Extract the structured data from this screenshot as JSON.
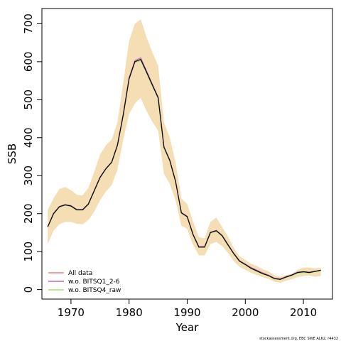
{
  "chart_data": {
    "type": "line",
    "xlabel": "Year",
    "ylabel": "SSB",
    "xlim": [
      1965,
      2015
    ],
    "ylim": [
      -25,
      740
    ],
    "xticks": [
      1970,
      1980,
      1990,
      2000,
      2010
    ],
    "yticks": [
      0,
      100,
      200,
      300,
      400,
      500,
      600,
      700
    ],
    "grid": false,
    "legend_position": "bottom-left",
    "x": [
      1966,
      1967,
      1968,
      1969,
      1970,
      1971,
      1972,
      1973,
      1974,
      1975,
      1976,
      1977,
      1978,
      1979,
      1980,
      1981,
      1982,
      1983,
      1984,
      1985,
      1986,
      1987,
      1988,
      1989,
      1990,
      1991,
      1992,
      1993,
      1994,
      1995,
      1996,
      1997,
      1998,
      1999,
      2000,
      2001,
      2002,
      2003,
      2004,
      2005,
      2006,
      2007,
      2008,
      2009,
      2010,
      2011,
      2012,
      2013
    ],
    "band": {
      "color": "#f5deb3",
      "upper": [
        210,
        240,
        265,
        270,
        262,
        250,
        248,
        268,
        310,
        355,
        380,
        395,
        440,
        545,
        655,
        700,
        712,
        665,
        625,
        590,
        440,
        400,
        335,
        240,
        225,
        180,
        138,
        135,
        178,
        190,
        165,
        140,
        110,
        88,
        78,
        68,
        62,
        54,
        48,
        38,
        34,
        38,
        42,
        52,
        58,
        58,
        56,
        58
      ],
      "lower": [
        120,
        155,
        172,
        178,
        178,
        173,
        172,
        183,
        205,
        235,
        258,
        275,
        315,
        395,
        462,
        490,
        505,
        470,
        442,
        418,
        305,
        278,
        235,
        168,
        160,
        118,
        90,
        90,
        120,
        125,
        115,
        97,
        75,
        60,
        52,
        44,
        38,
        33,
        28,
        21,
        18,
        23,
        27,
        33,
        36,
        37,
        34,
        36
      ]
    },
    "series": [
      {
        "name": "All data",
        "color": "#f08080",
        "values": [
          165,
          200,
          218,
          223,
          220,
          210,
          210,
          225,
          260,
          295,
          318,
          335,
          380,
          460,
          555,
          600,
          605,
          572,
          538,
          505,
          375,
          340,
          285,
          202,
          192,
          145,
          112,
          112,
          150,
          155,
          142,
          118,
          95,
          75,
          66,
          56,
          49,
          42,
          37,
          29,
          27,
          33,
          38,
          45,
          47,
          45,
          48,
          51
        ]
      },
      {
        "name": "w.o. BITSQ1_2-6",
        "color": "#c465c4",
        "values": [
          166,
          201,
          219,
          224,
          221,
          211,
          211,
          226,
          261,
          296,
          319,
          336,
          381,
          463,
          558,
          603,
          610,
          576,
          541,
          507,
          376,
          341,
          286,
          203,
          193,
          146,
          113,
          113,
          151,
          156,
          143,
          119,
          96,
          76,
          67,
          58,
          51,
          44,
          38,
          30,
          28,
          34,
          39,
          46,
          47,
          46,
          48,
          50
        ]
      },
      {
        "name": "w.o. BITSQ4_raw",
        "color": "#a8e070",
        "values": [
          165,
          199,
          217,
          222,
          219,
          209,
          209,
          224,
          259,
          294,
          317,
          334,
          379,
          459,
          554,
          598,
          603,
          570,
          536,
          503,
          373,
          338,
          283,
          201,
          191,
          144,
          111,
          111,
          149,
          154,
          141,
          117,
          94,
          74,
          65,
          55,
          48,
          41,
          36,
          28,
          26,
          32,
          37,
          43,
          45,
          44,
          47,
          50
        ]
      }
    ],
    "mean_line": {
      "color": "#000000",
      "values": [
        165,
        200,
        218,
        223,
        220,
        210,
        210,
        225,
        260,
        295,
        318,
        335,
        380,
        460,
        555,
        600,
        606,
        573,
        539,
        505,
        375,
        340,
        285,
        202,
        192,
        145,
        112,
        112,
        150,
        155,
        142,
        118,
        95,
        75,
        66,
        56,
        49,
        42,
        37,
        29,
        27,
        33,
        38,
        45,
        47,
        45,
        48,
        51
      ]
    }
  },
  "credit": "stockassessment.org, EBC SWE ALK2, r4432"
}
